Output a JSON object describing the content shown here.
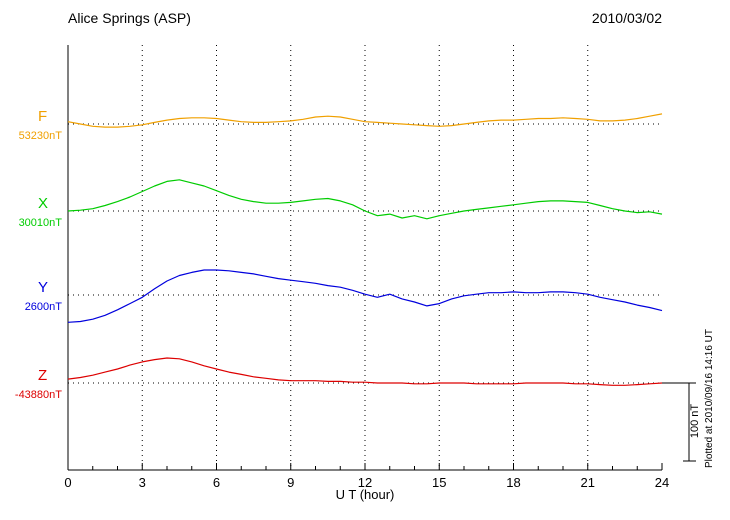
{
  "header": {
    "title": "Alice Springs (ASP)",
    "date": "2010/03/02"
  },
  "footer_note": "Plotted at 2010/09/16 14:16 UT",
  "chart_data": {
    "type": "line",
    "title": "Alice Springs (ASP)",
    "date": "2010/03/02",
    "xlabel": "U T (hour)",
    "x_range": [
      0,
      24
    ],
    "x_ticks": [
      0,
      3,
      6,
      9,
      12,
      15,
      18,
      21,
      24
    ],
    "grid_hours": [
      3,
      6,
      9,
      12,
      15,
      18,
      21
    ],
    "grid": "dotted vertical at 3h intervals, dotted horizontal baseline per trace",
    "x_step": 0.5,
    "units": "values are deviation in nT from each trace baseline",
    "scale_bar": {
      "label": "100 nT",
      "nT": 100
    },
    "plotted_at": "Plotted at 2010/09/16 14:16 UT",
    "series": [
      {
        "name": "F",
        "label": "F",
        "baseline_label": "53230nT",
        "baseline_nT": 53230,
        "color": "#f0a000",
        "values": [
          3,
          0,
          -3,
          -4,
          -4,
          -3,
          -1,
          2,
          5,
          7,
          8,
          8,
          7,
          5,
          3,
          2,
          2,
          3,
          4,
          6,
          9,
          10,
          9,
          6,
          3,
          2,
          1,
          0,
          -1,
          -2,
          -3,
          -2,
          0,
          2,
          4,
          5,
          5,
          6,
          7,
          7,
          8,
          7,
          6,
          4,
          4,
          5,
          7,
          10,
          13
        ]
      },
      {
        "name": "X",
        "label": "X",
        "baseline_label": "30010nT",
        "baseline_nT": 30010,
        "color": "#00cc00",
        "values": [
          0,
          1,
          3,
          7,
          12,
          18,
          25,
          32,
          38,
          40,
          36,
          32,
          26,
          20,
          15,
          12,
          10,
          10,
          11,
          13,
          15,
          16,
          13,
          8,
          0,
          -6,
          -4,
          -9,
          -6,
          -10,
          -6,
          -3,
          0,
          2,
          4,
          6,
          8,
          10,
          12,
          13,
          13,
          12,
          11,
          7,
          3,
          0,
          -2,
          -1,
          -4
        ]
      },
      {
        "name": "Y",
        "label": "Y",
        "baseline_label": "2600nT",
        "baseline_nT": 2600,
        "color": "#0000dd",
        "values": [
          -35,
          -34,
          -31,
          -26,
          -19,
          -11,
          -3,
          8,
          18,
          25,
          29,
          32,
          32,
          31,
          29,
          27,
          24,
          21,
          19,
          17,
          15,
          12,
          10,
          6,
          1,
          -3,
          1,
          -5,
          -9,
          -14,
          -11,
          -5,
          -1,
          1,
          3,
          3,
          4,
          3,
          3,
          4,
          4,
          3,
          1,
          -3,
          -6,
          -9,
          -13,
          -16,
          -20
        ]
      },
      {
        "name": "Z",
        "label": "Z",
        "baseline_label": "-43880nT",
        "baseline_nT": -43880,
        "color": "#dd0000",
        "values": [
          5,
          7,
          10,
          14,
          18,
          23,
          27,
          30,
          32,
          31,
          27,
          22,
          18,
          14,
          11,
          8,
          6,
          4,
          3,
          3,
          3,
          2,
          2,
          1,
          1,
          0,
          0,
          0,
          -1,
          -1,
          0,
          0,
          0,
          -1,
          -1,
          -1,
          -1,
          0,
          0,
          0,
          0,
          -1,
          -1,
          -2,
          -3,
          -3,
          -2,
          -1,
          0
        ]
      }
    ]
  }
}
